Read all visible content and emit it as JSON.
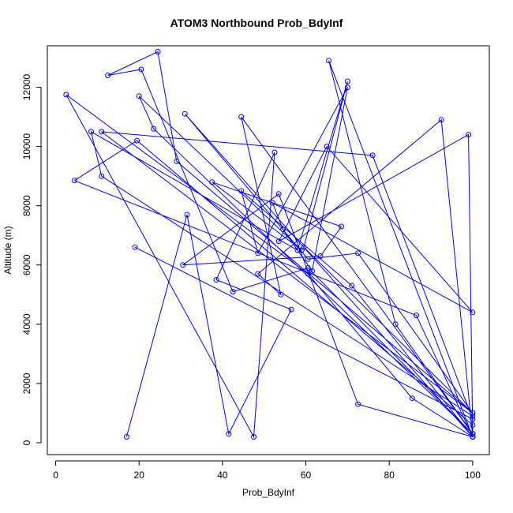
{
  "chart_data": {
    "type": "line",
    "title": "ATOM3 Northbound Prob_BdyInf",
    "xlabel": "Prob_BdyInf",
    "ylabel": "Altitude (m)",
    "xlim": [
      -2,
      104
    ],
    "ylim": [
      -400,
      13400
    ],
    "x_ticks": [
      0,
      20,
      40,
      60,
      80,
      100
    ],
    "y_ticks": [
      0,
      2000,
      4000,
      6000,
      8000,
      10000,
      12000
    ],
    "color": "#0000ff",
    "marker": "open-circle",
    "series": [
      {
        "x": [
          17,
          31.5,
          41.5,
          56.5,
          38.5,
          52.5,
          47.5,
          2.5,
          60.5,
          85.5,
          100,
          72.5,
          53.5,
          30.5,
          63.5,
          68.5,
          37.5,
          59,
          20,
          23.5,
          100,
          81.5,
          65.5,
          100,
          31,
          60.5,
          72.5,
          100,
          29,
          24.5,
          12.5,
          20.5,
          42.5,
          60.5,
          100,
          44.5,
          54,
          48.5,
          92.5,
          100,
          71,
          44.5,
          48.5,
          70,
          61.5,
          54.5,
          52,
          100,
          65,
          53.5,
          99,
          100,
          100,
          19.5,
          4.5,
          86.5,
          100,
          100,
          11,
          8.5,
          58,
          70,
          59.5,
          100,
          11,
          76,
          100,
          19
        ],
        "y": [
          200,
          7700,
          300,
          4500,
          5500,
          9800,
          200,
          11750,
          5700,
          1500,
          200,
          1300,
          8400,
          6000,
          6300,
          7300,
          8800,
          6500,
          11700,
          10600,
          300,
          4000,
          12900,
          200,
          11100,
          6200,
          6400,
          1000,
          9500,
          13200,
          12400,
          12600,
          5100,
          5900,
          300,
          11000,
          5000,
          5700,
          10900,
          200,
          5300,
          8500,
          6400,
          12000,
          5800,
          7200,
          8100,
          4400,
          10000,
          6800,
          10400,
          300,
          600,
          10200,
          8850,
          4300,
          200,
          900,
          9000,
          10500,
          6500,
          12200,
          6600,
          1000,
          10500,
          9700,
          800,
          6600
        ]
      }
    ]
  }
}
